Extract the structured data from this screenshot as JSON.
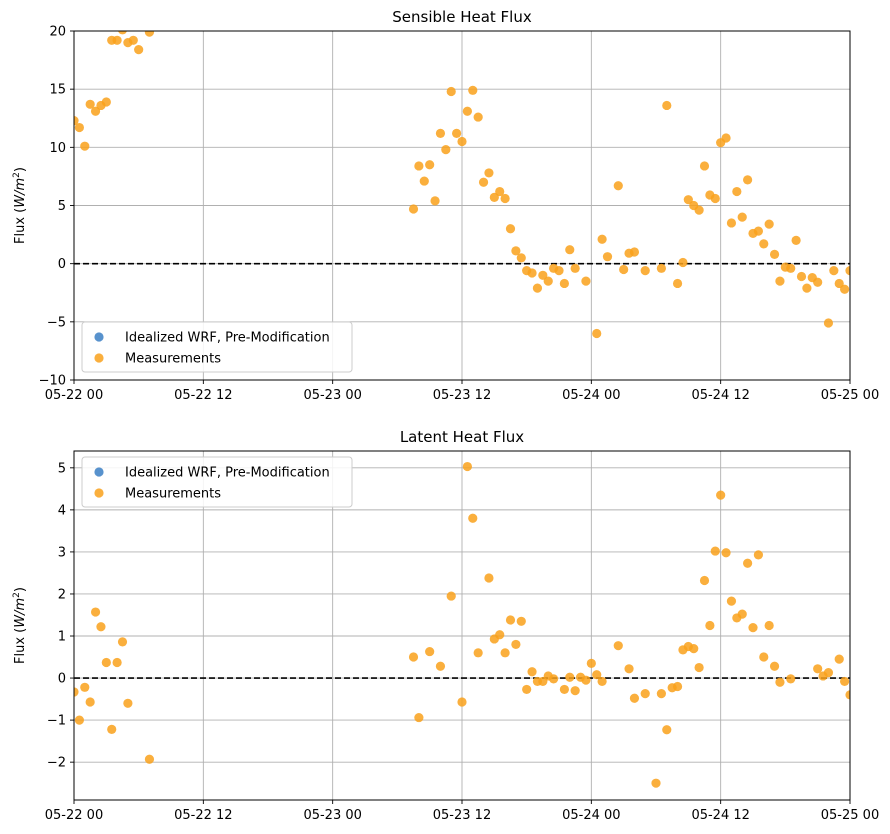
{
  "colors": {
    "measurements": "#f9a11b",
    "wrf": "#3b7fc4",
    "grid": "#b0b0b0",
    "zero_line": "#000000"
  },
  "chart_data": [
    {
      "type": "scatter",
      "title": "Sensible Heat Flux",
      "xlabel": "",
      "ylabel": "Flux (W/m2)",
      "xlim": [
        "2023-05-22 00:00",
        "2023-05-25 00:00"
      ],
      "ylim": [
        -10,
        20
      ],
      "xticks": [
        "05-22 00",
        "05-22 12",
        "05-23 00",
        "05-23 12",
        "05-24 00",
        "05-24 12",
        "05-25 00"
      ],
      "yticks": [
        "−10",
        "−5",
        "0",
        "5",
        "10",
        "15",
        "20"
      ],
      "grid": true,
      "legend_position": "lower-left",
      "zero_line": 0,
      "legend": [
        "Idealized WRF, Pre-Modification",
        "Measurements"
      ],
      "series": [
        {
          "name": "Idealized WRF, Pre-Modification",
          "points": []
        },
        {
          "name": "Measurements",
          "points": [
            {
              "x": "2023-05-22 00:00",
              "y": 12.3
            },
            {
              "x": "2023-05-22 00:30",
              "y": 11.7
            },
            {
              "x": "2023-05-22 01:00",
              "y": 10.1
            },
            {
              "x": "2023-05-22 01:30",
              "y": 13.7
            },
            {
              "x": "2023-05-22 02:00",
              "y": 13.1
            },
            {
              "x": "2023-05-22 02:30",
              "y": 13.6
            },
            {
              "x": "2023-05-22 03:00",
              "y": 13.9
            },
            {
              "x": "2023-05-22 03:30",
              "y": 19.2
            },
            {
              "x": "2023-05-22 04:00",
              "y": 19.2
            },
            {
              "x": "2023-05-22 04:30",
              "y": 20.1
            },
            {
              "x": "2023-05-22 05:00",
              "y": 19.0
            },
            {
              "x": "2023-05-22 05:30",
              "y": 19.2
            },
            {
              "x": "2023-05-22 06:00",
              "y": 18.4
            },
            {
              "x": "2023-05-22 07:00",
              "y": 19.9
            },
            {
              "x": "2023-05-23 07:30",
              "y": 4.7
            },
            {
              "x": "2023-05-23 08:00",
              "y": 8.4
            },
            {
              "x": "2023-05-23 08:30",
              "y": 7.1
            },
            {
              "x": "2023-05-23 09:00",
              "y": 8.5
            },
            {
              "x": "2023-05-23 09:30",
              "y": 5.4
            },
            {
              "x": "2023-05-23 10:00",
              "y": 11.2
            },
            {
              "x": "2023-05-23 10:30",
              "y": 9.8
            },
            {
              "x": "2023-05-23 11:00",
              "y": 14.8
            },
            {
              "x": "2023-05-23 11:30",
              "y": 11.2
            },
            {
              "x": "2023-05-23 12:00",
              "y": 10.5
            },
            {
              "x": "2023-05-23 12:30",
              "y": 13.1
            },
            {
              "x": "2023-05-23 13:00",
              "y": 14.9
            },
            {
              "x": "2023-05-23 13:30",
              "y": 12.6
            },
            {
              "x": "2023-05-23 14:00",
              "y": 7.0
            },
            {
              "x": "2023-05-23 14:30",
              "y": 7.8
            },
            {
              "x": "2023-05-23 15:00",
              "y": 5.7
            },
            {
              "x": "2023-05-23 15:30",
              "y": 6.2
            },
            {
              "x": "2023-05-23 16:00",
              "y": 5.6
            },
            {
              "x": "2023-05-23 16:30",
              "y": 3.0
            },
            {
              "x": "2023-05-23 17:00",
              "y": 1.1
            },
            {
              "x": "2023-05-23 17:30",
              "y": 0.5
            },
            {
              "x": "2023-05-23 18:00",
              "y": -0.6
            },
            {
              "x": "2023-05-23 18:30",
              "y": -0.8
            },
            {
              "x": "2023-05-23 19:00",
              "y": -2.1
            },
            {
              "x": "2023-05-23 19:30",
              "y": -1.0
            },
            {
              "x": "2023-05-23 20:00",
              "y": -1.5
            },
            {
              "x": "2023-05-23 20:30",
              "y": -0.4
            },
            {
              "x": "2023-05-23 21:00",
              "y": -0.6
            },
            {
              "x": "2023-05-23 21:30",
              "y": -1.7
            },
            {
              "x": "2023-05-23 22:00",
              "y": 1.2
            },
            {
              "x": "2023-05-23 22:30",
              "y": -0.4
            },
            {
              "x": "2023-05-23 23:30",
              "y": -1.5
            },
            {
              "x": "2023-05-24 00:30",
              "y": -6.0
            },
            {
              "x": "2023-05-24 01:00",
              "y": 2.1
            },
            {
              "x": "2023-05-24 01:30",
              "y": 0.6
            },
            {
              "x": "2023-05-24 02:30",
              "y": 6.7
            },
            {
              "x": "2023-05-24 03:00",
              "y": -0.5
            },
            {
              "x": "2023-05-24 03:30",
              "y": 0.9
            },
            {
              "x": "2023-05-24 04:00",
              "y": 1.0
            },
            {
              "x": "2023-05-24 05:00",
              "y": -0.6
            },
            {
              "x": "2023-05-24 06:30",
              "y": -0.4
            },
            {
              "x": "2023-05-24 07:00",
              "y": 13.6
            },
            {
              "x": "2023-05-24 08:00",
              "y": -1.7
            },
            {
              "x": "2023-05-24 08:30",
              "y": 0.1
            },
            {
              "x": "2023-05-24 09:00",
              "y": 5.5
            },
            {
              "x": "2023-05-24 09:30",
              "y": 5.0
            },
            {
              "x": "2023-05-24 10:00",
              "y": 4.6
            },
            {
              "x": "2023-05-24 10:30",
              "y": 8.4
            },
            {
              "x": "2023-05-24 11:00",
              "y": 5.9
            },
            {
              "x": "2023-05-24 11:30",
              "y": 5.6
            },
            {
              "x": "2023-05-24 12:00",
              "y": 10.4
            },
            {
              "x": "2023-05-24 12:30",
              "y": 10.8
            },
            {
              "x": "2023-05-24 13:00",
              "y": 3.5
            },
            {
              "x": "2023-05-24 13:30",
              "y": 6.2
            },
            {
              "x": "2023-05-24 14:00",
              "y": 4.0
            },
            {
              "x": "2023-05-24 14:30",
              "y": 7.2
            },
            {
              "x": "2023-05-24 15:00",
              "y": 2.6
            },
            {
              "x": "2023-05-24 15:30",
              "y": 2.8
            },
            {
              "x": "2023-05-24 16:00",
              "y": 1.7
            },
            {
              "x": "2023-05-24 16:30",
              "y": 3.4
            },
            {
              "x": "2023-05-24 17:00",
              "y": 0.8
            },
            {
              "x": "2023-05-24 17:30",
              "y": -1.5
            },
            {
              "x": "2023-05-24 18:00",
              "y": -0.3
            },
            {
              "x": "2023-05-24 18:30",
              "y": -0.4
            },
            {
              "x": "2023-05-24 19:00",
              "y": 2.0
            },
            {
              "x": "2023-05-24 19:30",
              "y": -1.1
            },
            {
              "x": "2023-05-24 20:00",
              "y": -2.1
            },
            {
              "x": "2023-05-24 20:30",
              "y": -1.2
            },
            {
              "x": "2023-05-24 21:00",
              "y": -1.6
            },
            {
              "x": "2023-05-24 22:00",
              "y": -5.1
            },
            {
              "x": "2023-05-24 22:30",
              "y": -0.6
            },
            {
              "x": "2023-05-24 23:00",
              "y": -1.7
            },
            {
              "x": "2023-05-24 23:30",
              "y": -2.2
            },
            {
              "x": "2023-05-25 00:00",
              "y": -0.6
            }
          ]
        }
      ]
    },
    {
      "type": "scatter",
      "title": "Latent Heat Flux",
      "xlabel": "",
      "ylabel": "Flux (W/m2)",
      "xlim": [
        "2023-05-22 00:00",
        "2023-05-25 00:00"
      ],
      "ylim": [
        -2.9,
        5.4
      ],
      "xticks": [
        "05-22 00",
        "05-22 12",
        "05-23 00",
        "05-23 12",
        "05-24 00",
        "05-24 12",
        "05-25 00"
      ],
      "yticks": [
        "−2",
        "−1",
        "0",
        "1",
        "2",
        "3",
        "4",
        "5"
      ],
      "grid": true,
      "legend_position": "upper-left",
      "zero_line": 0,
      "legend": [
        "Idealized WRF, Pre-Modification",
        "Measurements"
      ],
      "series": [
        {
          "name": "Idealized WRF, Pre-Modification",
          "points": []
        },
        {
          "name": "Measurements",
          "points": [
            {
              "x": "2023-05-22 00:00",
              "y": -0.33
            },
            {
              "x": "2023-05-22 00:30",
              "y": -1.0
            },
            {
              "x": "2023-05-22 01:00",
              "y": -0.22
            },
            {
              "x": "2023-05-22 01:30",
              "y": -0.57
            },
            {
              "x": "2023-05-22 02:00",
              "y": 1.57
            },
            {
              "x": "2023-05-22 02:30",
              "y": 1.22
            },
            {
              "x": "2023-05-22 03:00",
              "y": 0.37
            },
            {
              "x": "2023-05-22 03:30",
              "y": -1.22
            },
            {
              "x": "2023-05-22 04:00",
              "y": 0.37
            },
            {
              "x": "2023-05-22 04:30",
              "y": 0.86
            },
            {
              "x": "2023-05-22 05:00",
              "y": -0.6
            },
            {
              "x": "2023-05-22 07:00",
              "y": -1.93
            },
            {
              "x": "2023-05-23 07:30",
              "y": 0.5
            },
            {
              "x": "2023-05-23 08:00",
              "y": -0.94
            },
            {
              "x": "2023-05-23 09:00",
              "y": 0.63
            },
            {
              "x": "2023-05-23 10:00",
              "y": 0.28
            },
            {
              "x": "2023-05-23 11:00",
              "y": 1.95
            },
            {
              "x": "2023-05-23 12:00",
              "y": -0.57
            },
            {
              "x": "2023-05-23 12:30",
              "y": 5.03
            },
            {
              "x": "2023-05-23 13:00",
              "y": 3.8
            },
            {
              "x": "2023-05-23 13:30",
              "y": 0.6
            },
            {
              "x": "2023-05-23 14:30",
              "y": 2.38
            },
            {
              "x": "2023-05-23 15:00",
              "y": 0.93
            },
            {
              "x": "2023-05-23 15:30",
              "y": 1.03
            },
            {
              "x": "2023-05-23 16:00",
              "y": 0.6
            },
            {
              "x": "2023-05-23 16:30",
              "y": 1.38
            },
            {
              "x": "2023-05-23 17:00",
              "y": 0.8
            },
            {
              "x": "2023-05-23 17:30",
              "y": 1.35
            },
            {
              "x": "2023-05-23 18:00",
              "y": -0.27
            },
            {
              "x": "2023-05-23 18:30",
              "y": 0.15
            },
            {
              "x": "2023-05-23 19:00",
              "y": -0.08
            },
            {
              "x": "2023-05-23 19:30",
              "y": -0.08
            },
            {
              "x": "2023-05-23 20:00",
              "y": 0.05
            },
            {
              "x": "2023-05-23 20:30",
              "y": -0.02
            },
            {
              "x": "2023-05-23 21:30",
              "y": -0.27
            },
            {
              "x": "2023-05-23 22:00",
              "y": 0.02
            },
            {
              "x": "2023-05-23 22:30",
              "y": -0.3
            },
            {
              "x": "2023-05-23 23:00",
              "y": 0.02
            },
            {
              "x": "2023-05-23 23:30",
              "y": -0.05
            },
            {
              "x": "2023-05-24 00:00",
              "y": 0.35
            },
            {
              "x": "2023-05-24 00:30",
              "y": 0.08
            },
            {
              "x": "2023-05-24 01:00",
              "y": -0.08
            },
            {
              "x": "2023-05-24 02:30",
              "y": 0.77
            },
            {
              "x": "2023-05-24 03:30",
              "y": 0.22
            },
            {
              "x": "2023-05-24 04:00",
              "y": -0.48
            },
            {
              "x": "2023-05-24 05:00",
              "y": -0.37
            },
            {
              "x": "2023-05-24 06:00",
              "y": -2.5
            },
            {
              "x": "2023-05-24 06:30",
              "y": -0.37
            },
            {
              "x": "2023-05-24 07:00",
              "y": -1.23
            },
            {
              "x": "2023-05-24 07:30",
              "y": -0.23
            },
            {
              "x": "2023-05-24 08:00",
              "y": -0.2
            },
            {
              "x": "2023-05-24 08:30",
              "y": 0.67
            },
            {
              "x": "2023-05-24 09:00",
              "y": 0.75
            },
            {
              "x": "2023-05-24 09:30",
              "y": 0.7
            },
            {
              "x": "2023-05-24 10:00",
              "y": 0.25
            },
            {
              "x": "2023-05-24 10:30",
              "y": 2.32
            },
            {
              "x": "2023-05-24 11:00",
              "y": 1.25
            },
            {
              "x": "2023-05-24 11:30",
              "y": 3.02
            },
            {
              "x": "2023-05-24 12:00",
              "y": 4.35
            },
            {
              "x": "2023-05-24 12:30",
              "y": 2.98
            },
            {
              "x": "2023-05-24 13:00",
              "y": 1.83
            },
            {
              "x": "2023-05-24 13:30",
              "y": 1.43
            },
            {
              "x": "2023-05-24 14:00",
              "y": 1.52
            },
            {
              "x": "2023-05-24 14:30",
              "y": 2.73
            },
            {
              "x": "2023-05-24 15:00",
              "y": 1.2
            },
            {
              "x": "2023-05-24 15:30",
              "y": 2.93
            },
            {
              "x": "2023-05-24 16:00",
              "y": 0.5
            },
            {
              "x": "2023-05-24 16:30",
              "y": 1.25
            },
            {
              "x": "2023-05-24 17:00",
              "y": 0.28
            },
            {
              "x": "2023-05-24 17:30",
              "y": -0.1
            },
            {
              "x": "2023-05-24 18:30",
              "y": -0.02
            },
            {
              "x": "2023-05-24 21:00",
              "y": 0.22
            },
            {
              "x": "2023-05-24 21:30",
              "y": 0.05
            },
            {
              "x": "2023-05-24 22:00",
              "y": 0.13
            },
            {
              "x": "2023-05-24 23:00",
              "y": 0.45
            },
            {
              "x": "2023-05-24 23:30",
              "y": -0.08
            },
            {
              "x": "2023-05-25 00:00",
              "y": -0.4
            }
          ]
        }
      ]
    }
  ]
}
